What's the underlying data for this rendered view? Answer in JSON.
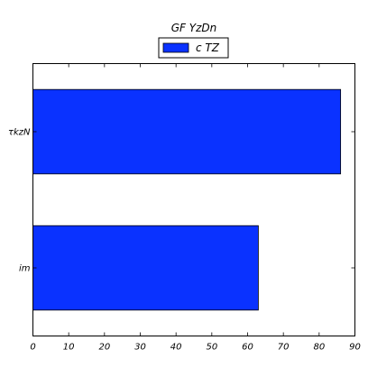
{
  "chart_data": {
    "type": "bar",
    "orientation": "horizontal",
    "title": "GF   YzDn",
    "categories": [
      "im",
      "τkzN"
    ],
    "series": [
      {
        "name": "c  TZ",
        "values": [
          63,
          86
        ],
        "color": "#0a32ff"
      }
    ],
    "xlim": [
      0,
      90
    ],
    "xticks": [
      0,
      10,
      20,
      30,
      40,
      50,
      60,
      70,
      80,
      90
    ],
    "xlabel": "",
    "ylabel": "",
    "grid": false,
    "legend": "top-center"
  }
}
